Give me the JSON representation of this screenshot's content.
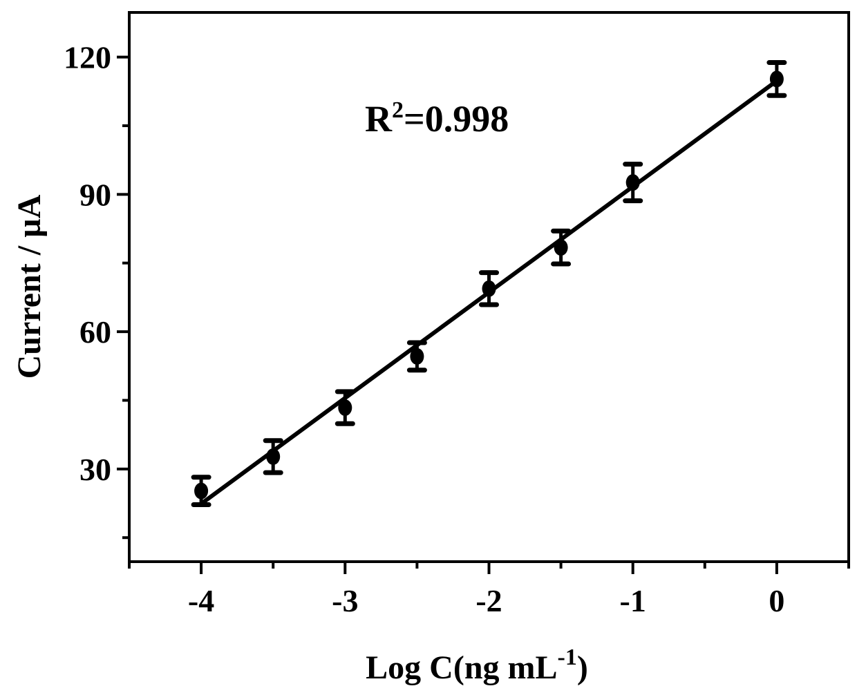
{
  "chart_data": {
    "type": "scatter",
    "title": "",
    "xlabel": "Log C(ng mL",
    "xlabel_superscript": "-1",
    "xlabel_suffix": ")",
    "ylabel": "Current / µA",
    "xlim": [
      -4.5,
      0.5
    ],
    "ylim": [
      9.75,
      129.75
    ],
    "x_ticks": [
      -4,
      -3,
      -2,
      -1,
      0
    ],
    "x_tick_labels": [
      "-4",
      "-3",
      "-2",
      "-1",
      "0"
    ],
    "x_minor_ticks": [
      -4.5,
      -3.5,
      -2.5,
      -1.5,
      -0.5,
      0.5
    ],
    "y_ticks": [
      30,
      60,
      90,
      120
    ],
    "y_tick_labels": [
      "30",
      "60",
      "90",
      "120"
    ],
    "y_minor_ticks": [
      15,
      45,
      75,
      105
    ],
    "grid": false,
    "series": [
      {
        "x": [
          -4,
          -3.5,
          -3,
          -2.5,
          -2,
          -1.5,
          -1,
          0
        ],
        "y": [
          25.2,
          32.7,
          43.4,
          54.6,
          69.4,
          78.4,
          92.6,
          115.2
        ],
        "error": [
          3.0,
          3.5,
          3.5,
          3.0,
          3.5,
          3.6,
          4.0,
          3.6
        ],
        "color": "#000000"
      }
    ],
    "fit_line": {
      "slope": 23.1,
      "intercept": 114.8,
      "x_range": [
        -4,
        0
      ],
      "color": "#000000"
    },
    "annotation": {
      "prefix": "R",
      "superscript": "2",
      "text": "=0.998"
    }
  }
}
